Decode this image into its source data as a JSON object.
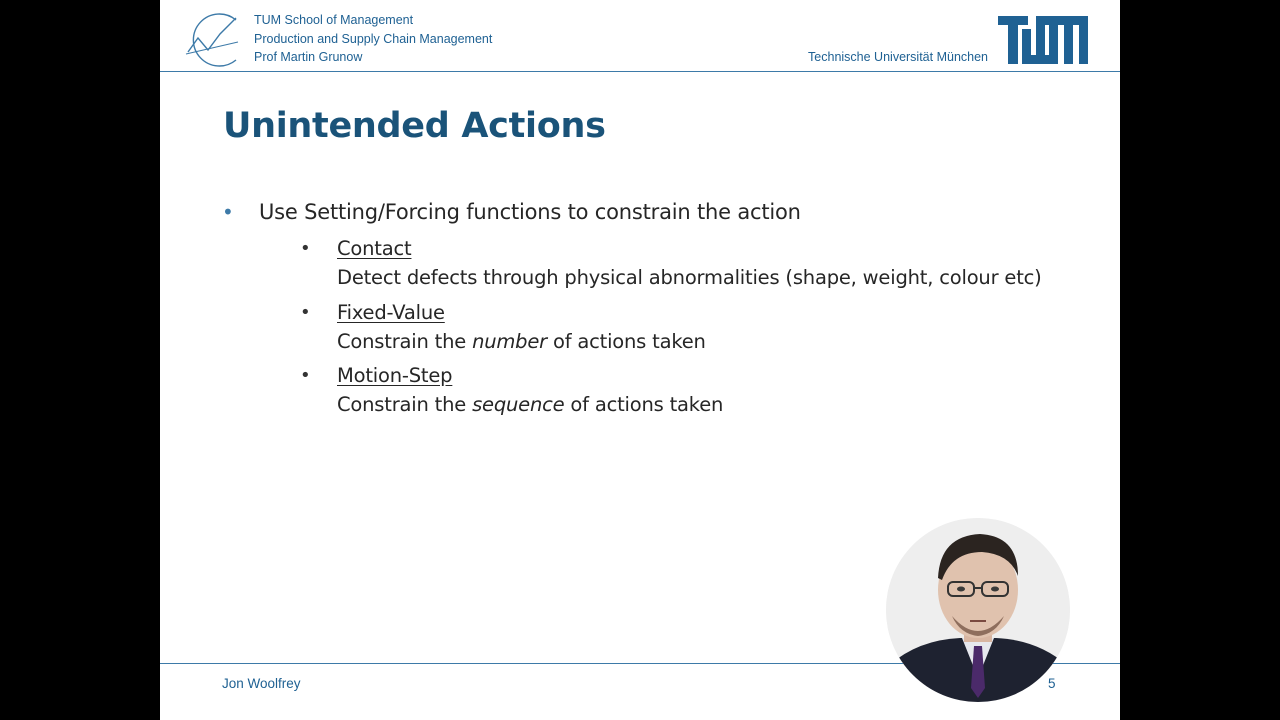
{
  "header": {
    "school": "TUM School of Management",
    "chair": "Production and Supply Chain Management",
    "professor": "Prof Martin Grunow",
    "university": "Technische Universität München",
    "logo_text": "TUM"
  },
  "slide": {
    "title": "Unintended Actions",
    "bullet": "Use Setting/Forcing functions to constrain the action",
    "sub_items": [
      {
        "heading": "Contact",
        "desc_before": "Detect defects through physical abnormalities (shape, weight, colour etc)",
        "desc_italic": "",
        "desc_after": ""
      },
      {
        "heading": "Fixed-Value",
        "desc_before": "Constrain the ",
        "desc_italic": "number",
        "desc_after": " of actions taken"
      },
      {
        "heading": "Motion-Step",
        "desc_before": "Constrain the ",
        "desc_italic": "sequence",
        "desc_after": " of actions taken"
      }
    ]
  },
  "footer": {
    "presenter": "Jon Woolfrey",
    "page_number": "5"
  },
  "colors": {
    "title": "#1a5379",
    "header_text": "#1f6193",
    "accent": "#3d7aa8",
    "body_text": "#262626"
  },
  "icons": {
    "chair_logo": "chart-growth-icon",
    "university_logo": "tum-logo",
    "webcam": "presenter-webcam"
  }
}
